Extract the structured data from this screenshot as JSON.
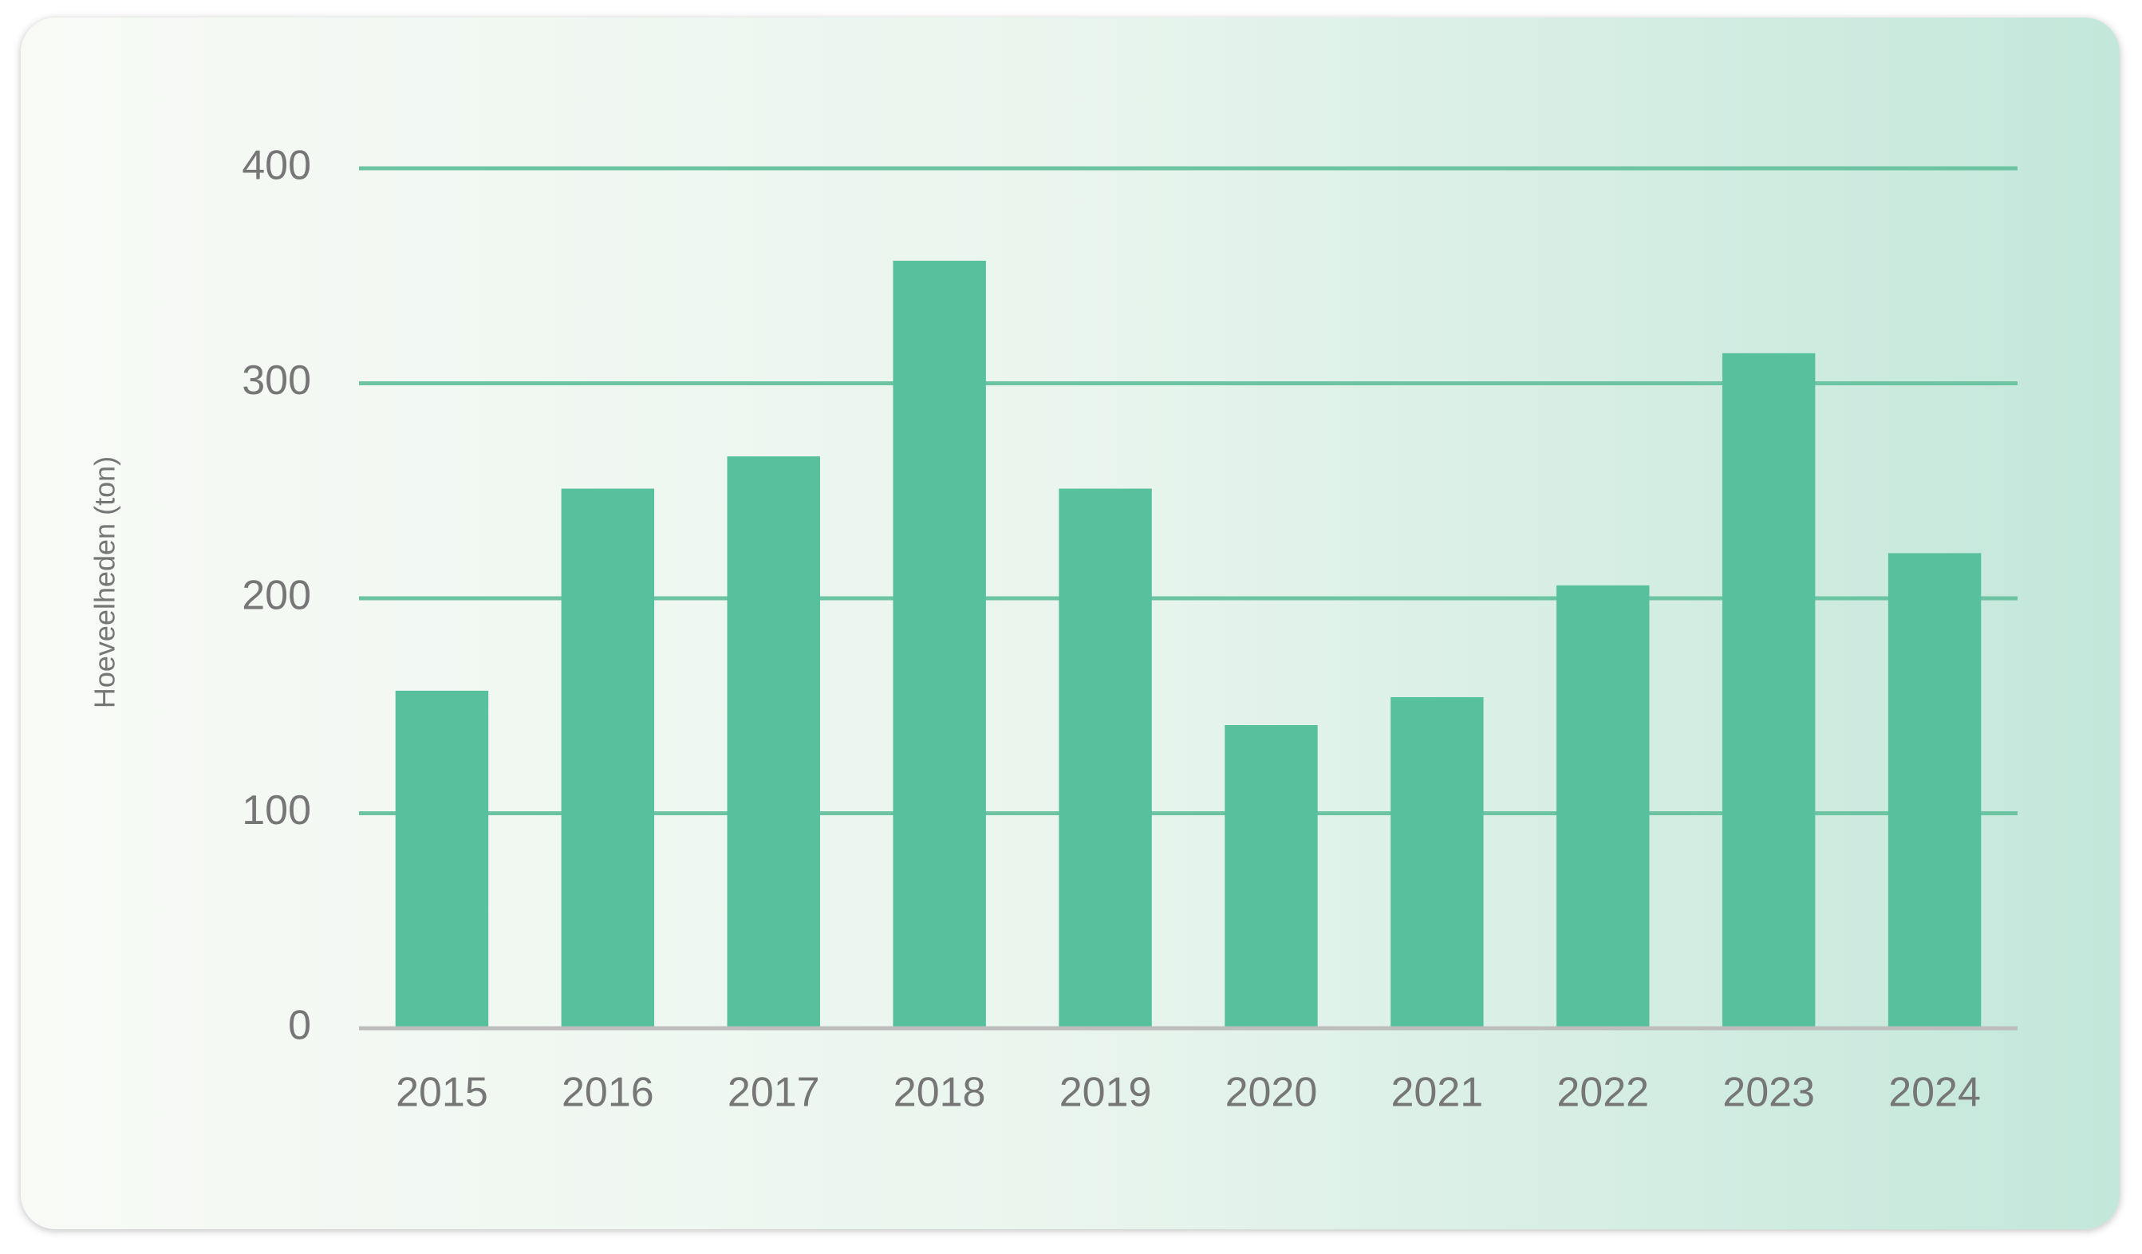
{
  "chart_data": {
    "type": "bar",
    "y_axis_label": "Hoeveelheden (ton)",
    "categories": [
      "2015",
      "2016",
      "2017",
      "2018",
      "2019",
      "2020",
      "2021",
      "2022",
      "2023",
      "2024"
    ],
    "values": [
      157,
      251,
      266,
      357,
      251,
      141,
      154,
      206,
      314,
      221
    ],
    "color": "#57c09d",
    "ylim": [
      0,
      400
    ],
    "yticks": [
      0,
      100,
      200,
      300,
      400
    ],
    "grid": true
  }
}
